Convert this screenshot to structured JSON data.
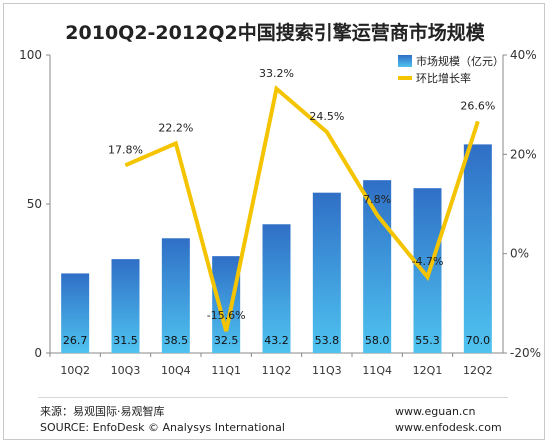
{
  "chart_data": {
    "type": "bar",
    "title": "2010Q2-2012Q2中国搜索引擎运营商市场规模",
    "categories": [
      "10Q2",
      "10Q3",
      "10Q4",
      "11Q1",
      "11Q2",
      "11Q3",
      "11Q4",
      "12Q1",
      "12Q2"
    ],
    "series": [
      {
        "name": "市场规模（亿元）",
        "type": "bar",
        "axis": "left",
        "values": [
          26.7,
          31.5,
          38.5,
          32.5,
          43.2,
          53.8,
          58.0,
          55.3,
          70.0
        ],
        "labels": [
          "26.7",
          "31.5",
          "38.5",
          "32.5",
          "43.2",
          "53.8",
          "58.0",
          "55.3",
          "70.0"
        ]
      },
      {
        "name": "环比增长率",
        "type": "line",
        "axis": "right",
        "values": [
          null,
          17.8,
          22.2,
          -15.6,
          33.2,
          24.5,
          7.8,
          -4.7,
          26.6
        ],
        "labels": [
          "",
          "17.8%",
          "22.2%",
          "-15.6%",
          "33.2%",
          "24.5%",
          "7.8%",
          "-4.7%",
          "26.6%"
        ]
      }
    ],
    "ylim_left": [
      0,
      100
    ],
    "yticks_left": [
      "0",
      "50",
      "100"
    ],
    "ylim_right": [
      -20,
      40
    ],
    "yticks_right": [
      "-20%",
      "0%",
      "20%",
      "40%"
    ],
    "colors": {
      "bar_top": "#2f6fc6",
      "bar_bottom": "#4fc3f0",
      "line": "#f5c400"
    },
    "legend_position": "top-right"
  },
  "footer": {
    "source_cn": "来源：易观国际·易观智库",
    "source_en": "SOURCE: EnfoDesk © Analysys International",
    "url1": "www.eguan.cn",
    "url2": "www.enfodesk.com"
  }
}
